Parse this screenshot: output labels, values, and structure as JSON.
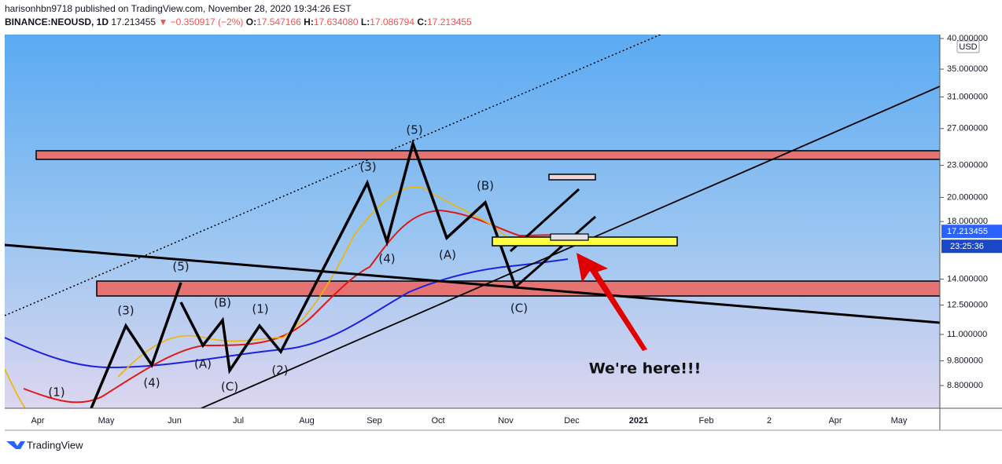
{
  "header": {
    "line1": "harisonhbn9718 published on TradingView.com, November 28, 2020 19:34:26 EST",
    "symbol": "BINANCE:NEOUSD, 1D",
    "last": "17.213455",
    "change": "▼ −0.350917 (−2%)",
    "o_label": "O:",
    "open": "17.547166",
    "h_label": "H:",
    "high": "17.634080",
    "l_label": "L:",
    "low": "17.086794",
    "c_label": "C:",
    "close": "17.213455"
  },
  "price_axis": {
    "currency": "USD",
    "log_scale": true,
    "ylim": [
      7.97,
      40.7
    ],
    "ticks": [
      {
        "value": 40,
        "label": "40.000000"
      },
      {
        "value": 35,
        "label": "35.000000"
      },
      {
        "value": 31,
        "label": "31.000000"
      },
      {
        "value": 27,
        "label": "27.000000"
      },
      {
        "value": 23,
        "label": "23.000000"
      },
      {
        "value": 20,
        "label": "20.000000"
      },
      {
        "value": 18,
        "label": "18.000000"
      },
      {
        "value": 14,
        "label": "14.000000"
      },
      {
        "value": 12.5,
        "label": "12.500000"
      },
      {
        "value": 11,
        "label": "11.000000"
      },
      {
        "value": 9.8,
        "label": "9.800000"
      },
      {
        "value": 8.8,
        "label": "8.800000"
      }
    ],
    "last_price": {
      "value": 17.213455,
      "label": "17.213455"
    },
    "countdown": "23:25:36"
  },
  "time_axis": [
    "Apr",
    "May",
    "Jun",
    "Jul",
    "Aug",
    "Sep",
    "Oct",
    "Nov",
    "Dec",
    "2021",
    "Feb",
    "2",
    "Apr",
    "May"
  ],
  "wave_labels": [
    "(1)",
    "(3)",
    "(4)",
    "(5)",
    "(A)",
    "(B)",
    "(C)",
    "(1)",
    "(2)",
    "(3)",
    "(4)",
    "(5)",
    "(A)",
    "(B)",
    "(C)"
  ],
  "annotation": "We're here!!!",
  "footer": "TradingView"
}
